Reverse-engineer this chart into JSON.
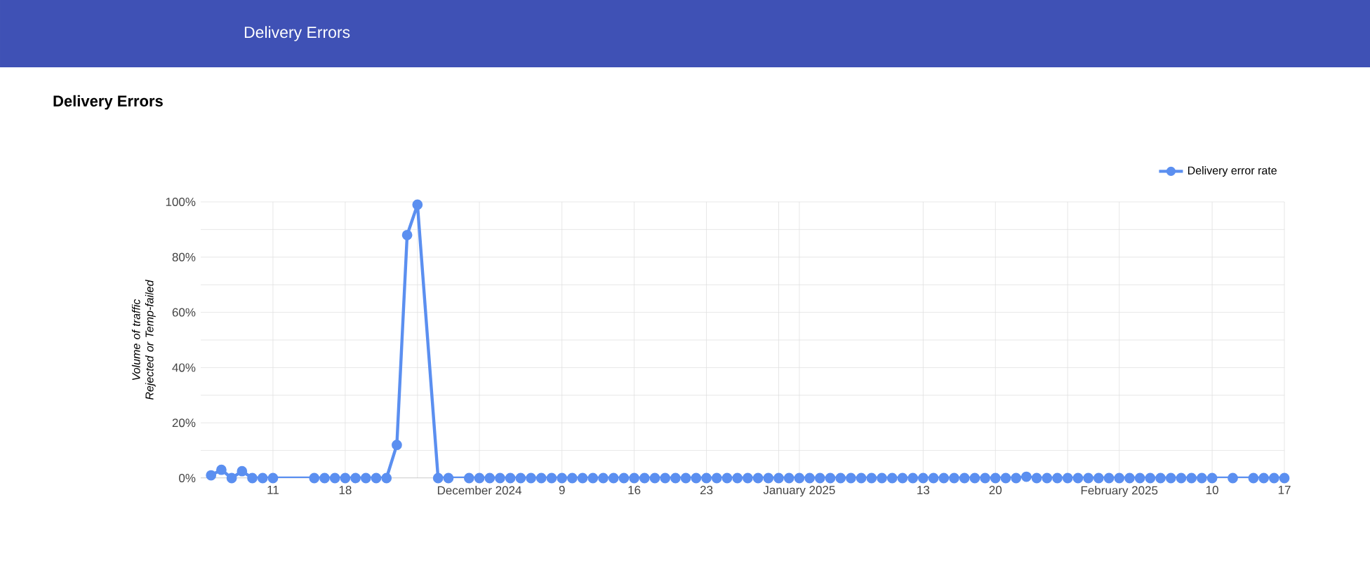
{
  "chart_data": {
    "type": "line",
    "title": "Delivery Errors",
    "annotations": [
      "Delivery Errors"
    ],
    "ylabel": "Volume of traffic Rejected or Temp-failed",
    "x": [
      "2024-11-05",
      "2024-11-06",
      "2024-11-07",
      "2024-11-08",
      "2024-11-09",
      "2024-11-10",
      "2024-11-11",
      "2024-11-15",
      "2024-11-16",
      "2024-11-17",
      "2024-11-18",
      "2024-11-19",
      "2024-11-20",
      "2024-11-21",
      "2024-11-22",
      "2024-11-23",
      "2024-11-24",
      "2024-11-25",
      "2024-11-27",
      "2024-11-28",
      "2024-11-30",
      "2024-12-01",
      "2024-12-02",
      "2024-12-03",
      "2024-12-04",
      "2024-12-05",
      "2024-12-06",
      "2024-12-07",
      "2024-12-08",
      "2024-12-09",
      "2024-12-10",
      "2024-12-11",
      "2024-12-12",
      "2024-12-13",
      "2024-12-14",
      "2024-12-15",
      "2024-12-16",
      "2024-12-17",
      "2024-12-18",
      "2024-12-19",
      "2024-12-20",
      "2024-12-21",
      "2024-12-22",
      "2024-12-23",
      "2024-12-24",
      "2024-12-25",
      "2024-12-26",
      "2024-12-27",
      "2024-12-28",
      "2024-12-29",
      "2024-12-30",
      "2024-12-31",
      "2025-01-01",
      "2025-01-02",
      "2025-01-03",
      "2025-01-04",
      "2025-01-05",
      "2025-01-06",
      "2025-01-07",
      "2025-01-08",
      "2025-01-09",
      "2025-01-10",
      "2025-01-11",
      "2025-01-12",
      "2025-01-13",
      "2025-01-14",
      "2025-01-15",
      "2025-01-16",
      "2025-01-17",
      "2025-01-18",
      "2025-01-19",
      "2025-01-20",
      "2025-01-21",
      "2025-01-22",
      "2025-01-23",
      "2025-01-24",
      "2025-01-25",
      "2025-01-26",
      "2025-01-27",
      "2025-01-28",
      "2025-01-29",
      "2025-01-30",
      "2025-01-31",
      "2025-02-01",
      "2025-02-02",
      "2025-02-03",
      "2025-02-04",
      "2025-02-05",
      "2025-02-06",
      "2025-02-07",
      "2025-02-08",
      "2025-02-09",
      "2025-02-10",
      "2025-02-12",
      "2025-02-14",
      "2025-02-15",
      "2025-02-16",
      "2025-02-17"
    ],
    "series": [
      {
        "name": "Delivery error rate",
        "color": "#5b8ff0",
        "values": [
          1,
          3,
          0,
          2.5,
          0,
          0,
          0,
          0,
          0,
          0,
          0,
          0,
          0,
          0,
          0,
          12,
          88,
          99,
          0,
          0,
          0,
          0,
          0,
          0,
          0,
          0,
          0,
          0,
          0,
          0,
          0,
          0,
          0,
          0,
          0,
          0,
          0,
          0,
          0,
          0,
          0,
          0,
          0,
          0,
          0,
          0,
          0,
          0,
          0,
          0,
          0,
          0,
          0,
          0,
          0,
          0,
          0,
          0,
          0,
          0,
          0,
          0,
          0,
          0,
          0,
          0,
          0,
          0,
          0,
          0,
          0,
          0,
          0,
          0,
          0.5,
          0,
          0,
          0,
          0,
          0,
          0,
          0,
          0,
          0,
          0,
          0,
          0,
          0,
          0,
          0,
          0,
          0,
          0,
          0,
          0,
          0,
          0,
          0
        ]
      }
    ],
    "xlim": [
      "2024-11-04",
      "2025-02-17"
    ],
    "xticks": [
      {
        "value": "2024-11-11",
        "label": "11"
      },
      {
        "value": "2024-11-18",
        "label": "18"
      },
      {
        "value": "2024-11-25",
        "label": null
      },
      {
        "value": "2024-12-01",
        "label": "December 2024"
      },
      {
        "value": "2024-12-09",
        "label": "9"
      },
      {
        "value": "2024-12-16",
        "label": "16"
      },
      {
        "value": "2024-12-23",
        "label": "23"
      },
      {
        "value": "2024-12-30",
        "label": null
      },
      {
        "value": "2025-01-01",
        "label": "January 2025"
      },
      {
        "value": "2025-01-13",
        "label": "13"
      },
      {
        "value": "2025-01-20",
        "label": "20"
      },
      {
        "value": "2025-01-27",
        "label": null
      },
      {
        "value": "2025-02-01",
        "label": "February 2025"
      },
      {
        "value": "2025-02-10",
        "label": "10"
      },
      {
        "value": "2025-02-17",
        "label": "17"
      }
    ],
    "ylim": [
      0,
      100
    ],
    "yticks": [
      {
        "value": 0,
        "label": "0%"
      },
      {
        "value": 10,
        "label": null
      },
      {
        "value": 20,
        "label": "20%"
      },
      {
        "value": 30,
        "label": null
      },
      {
        "value": 40,
        "label": "40%"
      },
      {
        "value": 50,
        "label": null
      },
      {
        "value": 60,
        "label": "60%"
      },
      {
        "value": 70,
        "label": null
      },
      {
        "value": 80,
        "label": "80%"
      },
      {
        "value": 90,
        "label": null
      },
      {
        "value": 100,
        "label": "100%"
      }
    ],
    "grid": true,
    "legend": "top right",
    "marker": "circle",
    "line_style": "solid"
  }
}
